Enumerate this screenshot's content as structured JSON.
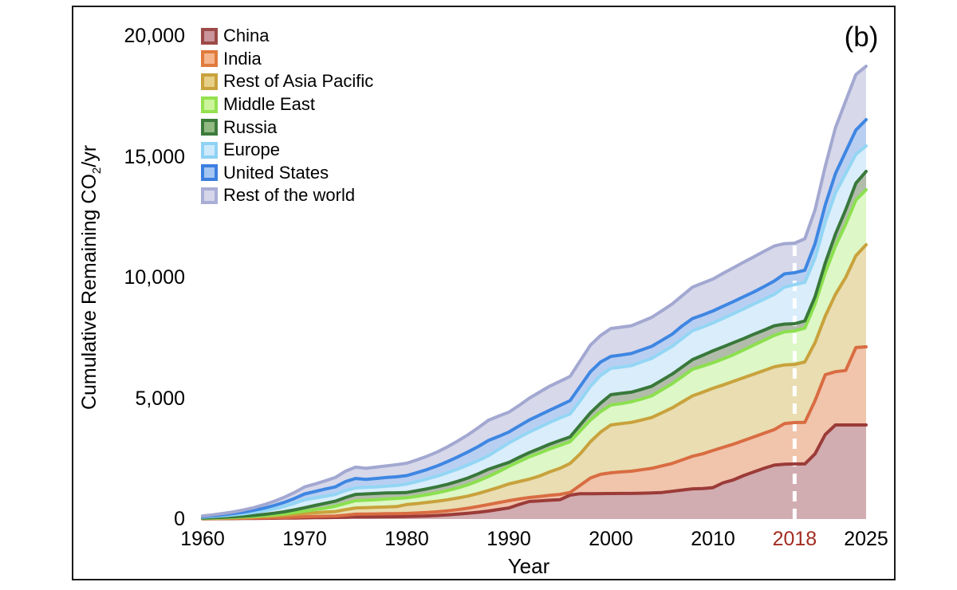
{
  "figure": {
    "panel_label": "(b)",
    "background": "#ffffff",
    "frame_color": "#1a1a1a"
  },
  "axes": {
    "x_label": "Year",
    "y_label_prefix": "Cumulative Remaining CO",
    "y_label_sub": "2",
    "y_label_suffix": "/yr",
    "x_ticks": [
      {
        "label": "1960",
        "year": 1960,
        "color": "#000000"
      },
      {
        "label": "1970",
        "year": 1970,
        "color": "#000000"
      },
      {
        "label": "1980",
        "year": 1980,
        "color": "#000000"
      },
      {
        "label": "1990",
        "year": 1990,
        "color": "#000000"
      },
      {
        "label": "2000",
        "year": 2000,
        "color": "#000000"
      },
      {
        "label": "2010",
        "year": 2010,
        "color": "#000000"
      },
      {
        "label": "2018",
        "year": 2018,
        "color": "#A32C20"
      },
      {
        "label": "2025",
        "year": 2025,
        "color": "#000000"
      }
    ],
    "y_ticks": [
      {
        "label": "0",
        "value": 0
      },
      {
        "label": "5,000",
        "value": 5000
      },
      {
        "label": "10,000",
        "value": 10000
      },
      {
        "label": "15,000",
        "value": 15000
      },
      {
        "label": "20,000",
        "value": 20000
      }
    ]
  },
  "legend": {
    "entries": [
      {
        "label": "China",
        "fill": "#C9949B",
        "border": "#9C4A48"
      },
      {
        "label": "India",
        "fill": "#F5B68E",
        "border": "#E07B3C"
      },
      {
        "label": "Rest of Asia Pacific",
        "fill": "#E6CF86",
        "border": "#C9A23C"
      },
      {
        "label": "Middle East",
        "fill": "#CCF59B",
        "border": "#94E24F"
      },
      {
        "label": "Russia",
        "fill": "#92B981",
        "border": "#3C7B3B"
      },
      {
        "label": "Europe",
        "fill": "#CDEAFC",
        "border": "#8ED2F4"
      },
      {
        "label": "United States",
        "fill": "#A5C6F3",
        "border": "#3C7FE0"
      },
      {
        "label": "Rest of the world",
        "fill": "#D5D6EA",
        "border": "#A9AED6"
      }
    ]
  },
  "annotation": {
    "dashed_line_year": 2018,
    "dashed_line_color": "#ffffff"
  },
  "chart_data": {
    "type": "area",
    "subtype": "stacked-cumulative",
    "title": "",
    "xlabel": "Year",
    "ylabel": "Cumulative Remaining CO2/yr",
    "xlim": [
      1960,
      2025
    ],
    "ylim": [
      0,
      20000
    ],
    "grid": false,
    "legend_position": "top-left",
    "note": "values are cumulative stack-top boundaries read from the chart; series listed bottom-to-top",
    "x": [
      1960,
      1961,
      1962,
      1963,
      1964,
      1965,
      1966,
      1967,
      1968,
      1969,
      1970,
      1971,
      1972,
      1973,
      1974,
      1975,
      1976,
      1977,
      1978,
      1979,
      1980,
      1981,
      1982,
      1983,
      1984,
      1985,
      1986,
      1987,
      1988,
      1989,
      1990,
      1991,
      1992,
      1993,
      1994,
      1995,
      1996,
      1997,
      1998,
      1999,
      2000,
      2001,
      2002,
      2003,
      2004,
      2005,
      2006,
      2007,
      2008,
      2009,
      2010,
      2011,
      2012,
      2013,
      2014,
      2015,
      2016,
      2017,
      2018,
      2019,
      2020,
      2021,
      2022,
      2023,
      2024,
      2025
    ],
    "series": [
      {
        "name": "China",
        "line": "#9B3B38",
        "fill": "#D1ACB1",
        "cumulative": [
          10,
          12,
          15,
          18,
          22,
          26,
          30,
          34,
          38,
          44,
          50,
          55,
          60,
          65,
          75,
          90,
          85,
          90,
          95,
          100,
          105,
          115,
          130,
          150,
          175,
          205,
          240,
          280,
          330,
          395,
          460,
          600,
          726,
          750,
          780,
          800,
          990,
          1050,
          1050,
          1053,
          1056,
          1058,
          1060,
          1070,
          1080,
          1100,
          1150,
          1200,
          1250,
          1260,
          1300,
          1500,
          1620,
          1800,
          1950,
          2100,
          2230,
          2270,
          2280,
          2280,
          2700,
          3500,
          3894,
          3894,
          3894,
          3894
        ]
      },
      {
        "name": "India",
        "line": "#D96C42",
        "fill": "#F1C4AC",
        "cumulative": [
          15,
          18,
          22,
          27,
          33,
          40,
          48,
          57,
          67,
          80,
          95,
          105,
          115,
          125,
          160,
          200,
          205,
          212,
          220,
          226,
          232,
          250,
          270,
          300,
          340,
          390,
          450,
          520,
          600,
          680,
          760,
          830,
          890,
          935,
          980,
          1020,
          1100,
          1400,
          1700,
          1850,
          1914,
          1950,
          1980,
          2040,
          2100,
          2200,
          2300,
          2450,
          2600,
          2700,
          2838,
          2970,
          3100,
          3250,
          3400,
          3550,
          3700,
          3950,
          3993,
          4000,
          4900,
          5973,
          6100,
          6150,
          7100,
          7128
        ]
      },
      {
        "name": "Rest of Asia Pacific",
        "line": "#C9A23C",
        "fill": "#E9DDB1",
        "cumulative": [
          25,
          32,
          42,
          54,
          68,
          85,
          105,
          128,
          155,
          190,
          230,
          260,
          290,
          310,
          390,
          460,
          470,
          485,
          500,
          515,
          600,
          640,
          690,
          740,
          800,
          870,
          950,
          1060,
          1180,
          1310,
          1452,
          1550,
          1650,
          1780,
          1950,
          2100,
          2300,
          2700,
          3200,
          3600,
          3894,
          3950,
          4000,
          4100,
          4200,
          4400,
          4600,
          4850,
          5100,
          5250,
          5412,
          5550,
          5700,
          5850,
          6000,
          6150,
          6300,
          6380,
          6402,
          6500,
          7300,
          8400,
          9300,
          10000,
          10900,
          11352
        ]
      },
      {
        "name": "Middle East",
        "line": "#8CE04F",
        "fill": "#DDF7C6",
        "cumulative": [
          30,
          40,
          55,
          70,
          88,
          110,
          140,
          175,
          215,
          270,
          330,
          390,
          450,
          530,
          650,
          760,
          780,
          800,
          830,
          855,
          880,
          940,
          1010,
          1090,
          1180,
          1290,
          1420,
          1580,
          1760,
          1960,
          2178,
          2380,
          2574,
          2730,
          2900,
          3050,
          3200,
          3650,
          4100,
          4450,
          4719,
          4780,
          4850,
          4970,
          5100,
          5350,
          5600,
          5900,
          6200,
          6330,
          6468,
          6630,
          6800,
          7000,
          7200,
          7400,
          7600,
          7750,
          7788,
          7900,
          8900,
          10200,
          11300,
          12200,
          13200,
          13629
        ]
      },
      {
        "name": "Russia",
        "line": "#38783A",
        "fill": "#B2BCAB",
        "cumulative": [
          40,
          55,
          75,
          95,
          120,
          150,
          190,
          240,
          300,
          380,
          470,
          560,
          650,
          740,
          890,
          1020,
          1040,
          1060,
          1080,
          1085,
          1100,
          1170,
          1250,
          1340,
          1440,
          1560,
          1700,
          1870,
          2060,
          2200,
          2343,
          2550,
          2750,
          2920,
          3100,
          3250,
          3400,
          3900,
          4400,
          4800,
          5148,
          5200,
          5250,
          5370,
          5500,
          5750,
          6000,
          6300,
          6600,
          6780,
          6963,
          7130,
          7300,
          7470,
          7650,
          7820,
          8000,
          8070,
          8085,
          8200,
          9200,
          10600,
          11800,
          12800,
          13900,
          14388
        ]
      },
      {
        "name": "Europe",
        "line": "#93D6F4",
        "fill": "#D9EDFB",
        "cumulative": [
          80,
          105,
          135,
          170,
          215,
          270,
          340,
          420,
          520,
          650,
          800,
          870,
          940,
          1020,
          1180,
          1290,
          1310,
          1330,
          1360,
          1390,
          1450,
          1550,
          1660,
          1780,
          1920,
          2070,
          2240,
          2420,
          2620,
          2880,
          3150,
          3380,
          3600,
          3800,
          4000,
          4180,
          4350,
          4900,
          5500,
          5950,
          6237,
          6290,
          6350,
          6500,
          6650,
          6900,
          7150,
          7480,
          7800,
          7950,
          8118,
          8310,
          8500,
          8700,
          8900,
          9100,
          9300,
          9600,
          9702,
          9800,
          10800,
          12300,
          13500,
          14300,
          15100,
          15444
        ]
      },
      {
        "name": "United States",
        "line": "#3E86E2",
        "fill": "#B9CFF2",
        "cumulative": [
          100,
          135,
          175,
          225,
          285,
          360,
          450,
          560,
          690,
          850,
          1040,
          1140,
          1240,
          1330,
          1550,
          1680,
          1640,
          1680,
          1720,
          1750,
          1800,
          1920,
          2050,
          2200,
          2380,
          2570,
          2780,
          3000,
          3250,
          3420,
          3600,
          3850,
          4100,
          4300,
          4500,
          4700,
          4900,
          5500,
          6100,
          6500,
          6732,
          6790,
          6850,
          7000,
          7150,
          7400,
          7650,
          8000,
          8300,
          8450,
          8613,
          8810,
          9000,
          9200,
          9400,
          9620,
          9850,
          10150,
          10197,
          10300,
          11400,
          13000,
          14300,
          15200,
          16100,
          16533
        ]
      },
      {
        "name": "Rest of the world",
        "line": "#A3A8D1",
        "fill": "#D7D8EA",
        "cumulative": [
          130,
          175,
          230,
          295,
          375,
          470,
          590,
          730,
          900,
          1100,
          1330,
          1450,
          1580,
          1720,
          1980,
          2150,
          2100,
          2150,
          2200,
          2250,
          2310,
          2450,
          2600,
          2780,
          2990,
          3230,
          3490,
          3780,
          4090,
          4260,
          4422,
          4700,
          5000,
          5250,
          5500,
          5700,
          5900,
          6550,
          7200,
          7600,
          7887,
          7940,
          8000,
          8170,
          8350,
          8620,
          8900,
          9250,
          9600,
          9770,
          9933,
          10170,
          10400,
          10630,
          10850,
          11080,
          11300,
          11400,
          11418,
          11600,
          12800,
          14600,
          16200,
          17300,
          18400,
          18744
        ]
      }
    ]
  }
}
